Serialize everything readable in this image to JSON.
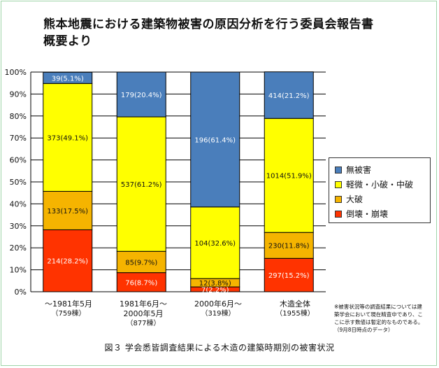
{
  "title_lines": [
    "熊本地震における建築物被害の原因分析を行う委員会報告書",
    "概要より"
  ],
  "caption": "図３ 学会悉皆調査結果による木造の建築時期別の被害状況",
  "note_lines": [
    "※被害状況等の調査結果については建",
    "築学会において現在精査中であり、こ",
    "こに示す数値は暫定的なものである。",
    "（9月8日時点のデータ）"
  ],
  "x_categories": [
    {
      "line1": "～1981年5月",
      "line2": "（759棟）",
      "line3": ""
    },
    {
      "line1": "1981年6月～",
      "line2": "2000年5月",
      "line3": "（877棟）"
    },
    {
      "line1": "2000年6月～",
      "line2": "（319棟）",
      "line3": ""
    },
    {
      "line1": "木造全体",
      "line2": "（1955棟）",
      "line3": ""
    }
  ],
  "legend": [
    {
      "label": "無被害",
      "color": "#4a7ebb"
    },
    {
      "label": "軽微・小破・中破",
      "color": "#ffff00"
    },
    {
      "label": "大破",
      "color": "#f5b400"
    },
    {
      "label": "倒壊・崩壊",
      "color": "#ff3300"
    }
  ],
  "chart_data": {
    "type": "bar",
    "stacked": true,
    "normalized": true,
    "categories": [
      "～1981年5月（759棟）",
      "1981年6月～2000年5月（877棟）",
      "2000年6月～（319棟）",
      "木造全体（1955棟）"
    ],
    "series": [
      {
        "name": "倒壊・崩壊",
        "color": "#ff3300",
        "counts": [
          214,
          76,
          7,
          297
        ],
        "values": [
          28.2,
          8.7,
          2.2,
          15.2
        ],
        "labels": [
          "214(28.2%)",
          "76(8.7%)",
          "7(2.2%)",
          "297(15.2%)"
        ]
      },
      {
        "name": "大破",
        "color": "#f5b400",
        "counts": [
          133,
          85,
          12,
          230
        ],
        "values": [
          17.5,
          9.7,
          3.8,
          11.8
        ],
        "labels": [
          "133(17.5%)",
          "85(9.7%)",
          "12(3.8%)",
          "230(11.8%)"
        ]
      },
      {
        "name": "軽微・小破・中破",
        "color": "#ffff00",
        "counts": [
          373,
          537,
          104,
          1014
        ],
        "values": [
          49.1,
          61.2,
          32.6,
          51.9
        ],
        "labels": [
          "373(49.1%)",
          "537(61.2%)",
          "104(32.6%)",
          "1014(51.9%)"
        ]
      },
      {
        "name": "無被害",
        "color": "#4a7ebb",
        "counts": [
          39,
          179,
          196,
          414
        ],
        "values": [
          5.1,
          20.4,
          61.4,
          21.2
        ],
        "labels": [
          "39(5.1%)",
          "179(20.4%)",
          "196(61.4%)",
          "414(21.2%)"
        ]
      }
    ],
    "ylim": [
      0,
      100
    ],
    "yticks": [
      "0%",
      "10%",
      "20%",
      "30%",
      "40%",
      "50%",
      "60%",
      "70%",
      "80%",
      "90%",
      "100%"
    ],
    "legend_position": "right"
  }
}
